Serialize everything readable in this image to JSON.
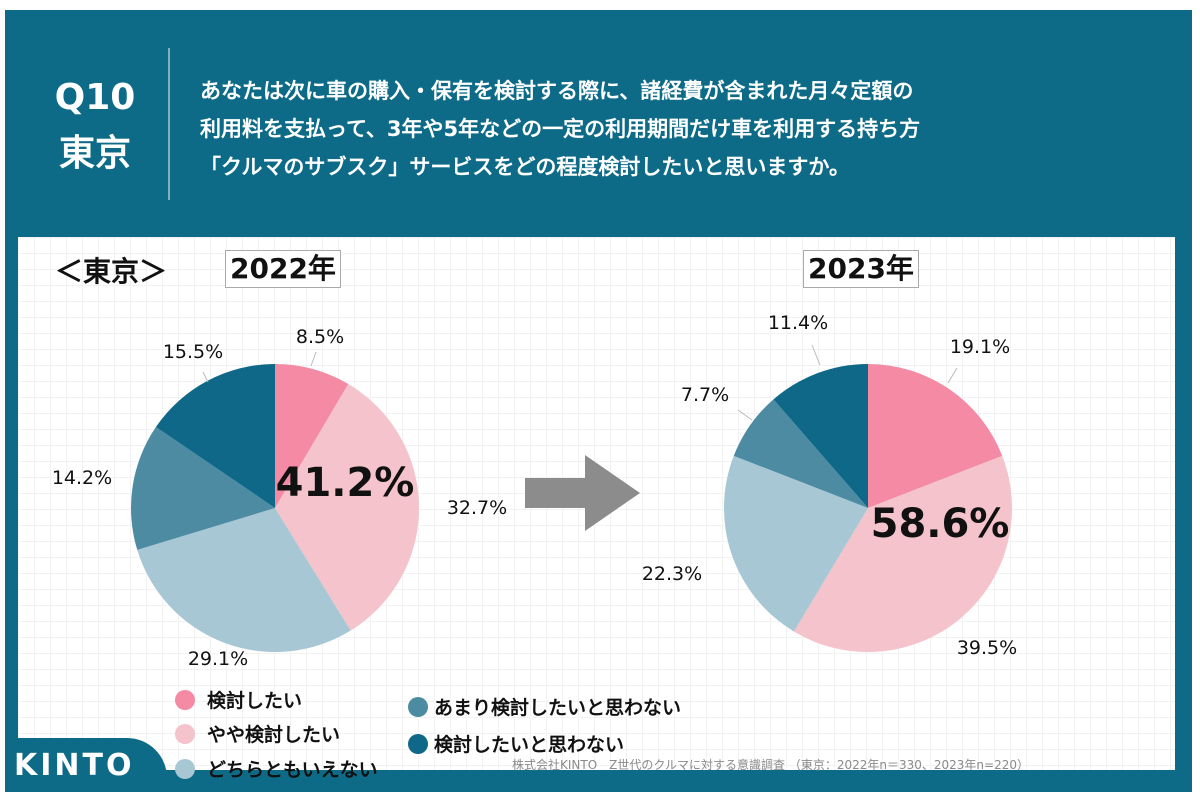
{
  "header": {
    "question_no": "Q10",
    "region": "東京",
    "question_lines": [
      "あなたは次に車の購入・保有を検討する際に、諸経費が含まれた月々定額の",
      "利用料を支払って、3年や5年などの一定の利用期間だけ車を利用する持ち方",
      "「クルマのサブスク」サービスをどの程度検討したいと思いますか。"
    ]
  },
  "region_label": "＜東京＞",
  "colors": [
    "#f48aa3",
    "#f4c3cc",
    "#a6c7d3",
    "#4c8ba1",
    "#0f6888"
  ],
  "chart_data": [
    {
      "type": "pie",
      "title": "2022年",
      "categories": [
        "検討したい",
        "やや検討したい",
        "どちらともいえない",
        "あまり検討したいと思わない",
        "検討したいと思わない"
      ],
      "values": [
        8.5,
        32.7,
        29.1,
        14.2,
        15.5
      ],
      "labels": [
        "8.5%",
        "32.7%",
        "29.1%",
        "14.2%",
        "15.5%"
      ],
      "highlight": "41.2%"
    },
    {
      "type": "pie",
      "title": "2023年",
      "categories": [
        "検討したい",
        "やや検討したい",
        "どちらともいえない",
        "あまり検討したいと思わない",
        "検討したいと思わない"
      ],
      "values": [
        19.1,
        39.5,
        22.3,
        7.7,
        11.4
      ],
      "labels": [
        "19.1%",
        "39.5%",
        "22.3%",
        "7.7%",
        "11.4%"
      ],
      "highlight": "58.6%"
    }
  ],
  "legend": [
    "検討したい",
    "やや検討したい",
    "どちらともいえない",
    "あまり検討したいと思わない",
    "検討したいと思わない"
  ],
  "source": "株式会社KINTO　Z世代のクルマに対する意識調査 （東京：2022年n＝330、2023年n=220）",
  "logo": "KINTO"
}
